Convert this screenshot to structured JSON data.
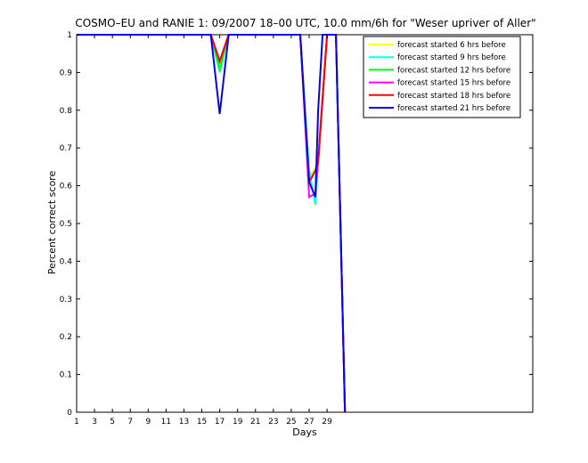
{
  "chart_data": {
    "type": "line",
    "title": "COSMO–EU and RANIE 1: 09/2007 18–00 UTC, 10.0 mm/6h for \"Weser upriver of Aller\"",
    "xlabel": "Days",
    "ylabel": "Percent correct score",
    "xlim": [
      1,
      52
    ],
    "ylim": [
      0,
      1
    ],
    "xticks": [
      1,
      3,
      5,
      7,
      9,
      11,
      13,
      15,
      17,
      19,
      21,
      23,
      25,
      27,
      29
    ],
    "yticks": [
      0,
      0.1,
      0.2,
      0.3,
      0.4,
      0.5,
      0.6,
      0.7,
      0.8,
      0.9,
      1
    ],
    "ytick_labels": [
      "0",
      "0.1",
      "0.2",
      "0.3",
      "0.4",
      "0.5",
      "0.6",
      "0.7",
      "0.8",
      "0.9",
      "1"
    ],
    "legend_position": "top-right",
    "grid": false,
    "series": [
      {
        "name": "forecast started 6 hrs before",
        "color": "#ffff00",
        "points": [
          [
            1,
            1
          ],
          [
            16,
            1
          ],
          [
            17,
            0.92
          ],
          [
            18,
            1
          ],
          [
            26,
            1
          ],
          [
            27,
            0.62
          ],
          [
            27.7,
            0.65
          ],
          [
            28,
            0.66
          ],
          [
            29,
            1
          ],
          [
            30,
            1
          ],
          [
            31,
            0
          ]
        ]
      },
      {
        "name": "forecast started 9 hrs before",
        "color": "#00ffff",
        "points": [
          [
            1,
            1
          ],
          [
            16,
            1
          ],
          [
            17,
            0.9
          ],
          [
            18,
            1
          ],
          [
            26,
            1
          ],
          [
            27,
            0.64
          ],
          [
            27.7,
            0.55
          ],
          [
            28,
            0.67
          ],
          [
            29,
            1
          ],
          [
            30,
            1
          ],
          [
            31,
            0
          ]
        ]
      },
      {
        "name": "forecast started 12 hrs before",
        "color": "#00ff00",
        "points": [
          [
            1,
            1
          ],
          [
            16,
            1
          ],
          [
            17,
            0.91
          ],
          [
            18,
            1
          ],
          [
            26,
            1
          ],
          [
            27,
            0.61
          ],
          [
            27.7,
            0.64
          ],
          [
            28,
            0.66
          ],
          [
            29,
            1
          ],
          [
            30,
            1
          ],
          [
            31,
            0
          ]
        ]
      },
      {
        "name": "forecast started 15 hrs before",
        "color": "#ff00ff",
        "points": [
          [
            1,
            1
          ],
          [
            16,
            1
          ],
          [
            17,
            0.93
          ],
          [
            18,
            1
          ],
          [
            26,
            1
          ],
          [
            27,
            0.57
          ],
          [
            27.7,
            0.58
          ],
          [
            28,
            0.67
          ],
          [
            29,
            1
          ],
          [
            30,
            1
          ],
          [
            31,
            0
          ]
        ]
      },
      {
        "name": "forecast started 18 hrs before",
        "color": "#ff0000",
        "points": [
          [
            1,
            1
          ],
          [
            16,
            1
          ],
          [
            17,
            0.93
          ],
          [
            18,
            1
          ],
          [
            26,
            1
          ],
          [
            27,
            0.61
          ],
          [
            27.7,
            0.64
          ],
          [
            28,
            0.66
          ],
          [
            29,
            1
          ],
          [
            30,
            1
          ],
          [
            31,
            0
          ]
        ]
      },
      {
        "name": "forecast started 21 hrs before",
        "color": "#0000ff",
        "points": [
          [
            1,
            1
          ],
          [
            16,
            1
          ],
          [
            17,
            0.79
          ],
          [
            18,
            1
          ],
          [
            26,
            1
          ],
          [
            27,
            0.61
          ],
          [
            27.7,
            0.57
          ],
          [
            28,
            0.8
          ],
          [
            28.5,
            1
          ],
          [
            30,
            1
          ],
          [
            31,
            0
          ]
        ]
      }
    ]
  }
}
